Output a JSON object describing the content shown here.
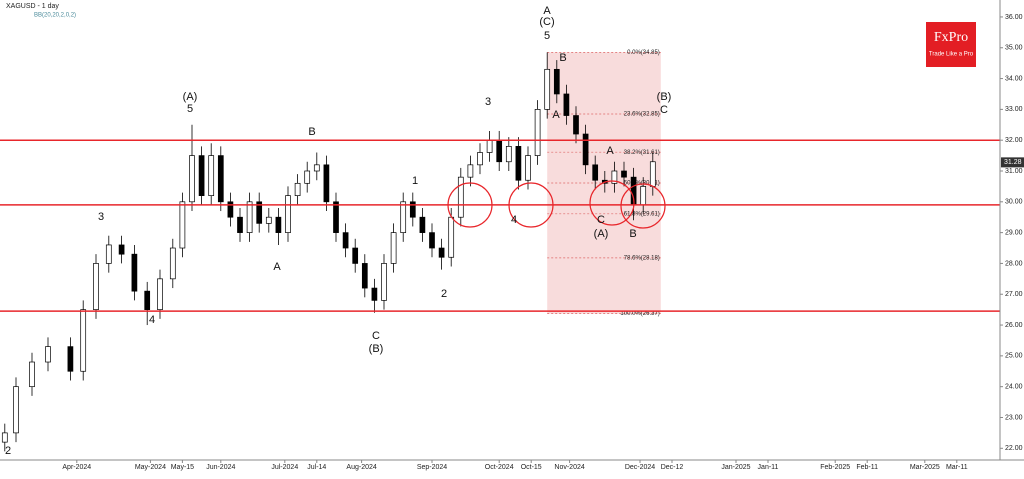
{
  "chart_data": {
    "type": "candlestick",
    "title": "XAGUSD - 1 day",
    "subtitle": "BB(20,20,2,0,2)",
    "logo": {
      "brand": "FxPro",
      "tagline": "Trade Like a Pro"
    },
    "x": [
      1.5,
      5,
      10,
      15,
      22,
      26,
      30,
      34,
      38,
      42,
      46,
      50,
      54,
      57,
      60,
      63,
      66,
      69,
      72,
      75,
      78,
      81,
      84,
      87,
      90,
      93,
      96,
      99,
      102,
      105,
      108,
      111,
      114,
      117,
      120,
      123,
      126,
      129,
      132,
      135,
      138,
      141,
      144,
      147,
      150,
      153,
      156,
      159,
      162,
      165,
      168,
      171,
      174,
      177,
      180,
      183,
      186,
      189,
      192,
      195,
      198,
      201,
      204
    ],
    "open": [
      22.2,
      22.5,
      24,
      24.8,
      25.3,
      24.5,
      26.5,
      28,
      28.6,
      28.3,
      27.1,
      26.5,
      27.5,
      28.5,
      30,
      31.5,
      30.2,
      31.5,
      30,
      29.5,
      29,
      30,
      29.3,
      29.5,
      29,
      30.2,
      30.6,
      31,
      31.2,
      30,
      29,
      28.5,
      28,
      27.2,
      26.8,
      28,
      29,
      30,
      29.5,
      29,
      28.5,
      28.2,
      29.5,
      30.8,
      31.2,
      31.6,
      32,
      31.3,
      31.8,
      30.7,
      31.5,
      33,
      34.3,
      33.5,
      32.8,
      32.2,
      31.2,
      30.7,
      30.6,
      31,
      30.8,
      29.9,
      30.5
    ],
    "high": [
      22.8,
      24.3,
      25.1,
      25.6,
      25.6,
      26.8,
      28.3,
      28.9,
      28.9,
      28.6,
      27.4,
      27.8,
      28.8,
      30.3,
      32.5,
      31.8,
      31.9,
      31.8,
      30.3,
      29.8,
      30.3,
      30.3,
      29.8,
      29.8,
      30.5,
      30.9,
      31.3,
      31.6,
      31.5,
      30.3,
      29.3,
      28.8,
      28.3,
      27.5,
      28.3,
      29.3,
      30.3,
      30.3,
      29.8,
      29.3,
      28.8,
      29.8,
      31.1,
      31.5,
      31.9,
      32.3,
      32.3,
      32.1,
      32.1,
      31.8,
      33.3,
      34.85,
      34.6,
      33.8,
      33.1,
      32.5,
      31.5,
      31,
      31.3,
      31.3,
      31.1,
      30.8,
      31.6
    ],
    "low": [
      21.9,
      22.2,
      23.7,
      24.5,
      24.2,
      24.2,
      26.2,
      27.7,
      28,
      26.8,
      26,
      26.2,
      27.2,
      28.2,
      29.7,
      29.9,
      29.9,
      29.7,
      29.2,
      28.7,
      28.7,
      29,
      29,
      28.6,
      28.7,
      29.9,
      30.3,
      30.7,
      29.7,
      28.7,
      28.2,
      27.7,
      26.9,
      26.4,
      26.5,
      27.7,
      28.7,
      29.2,
      28.7,
      28.2,
      27.8,
      27.9,
      29.2,
      30.5,
      30.9,
      31.3,
      31,
      31,
      30.4,
      30.4,
      31.2,
      32.7,
      33.2,
      32.5,
      31.9,
      30.9,
      30.4,
      30.3,
      30.3,
      30.5,
      29.4,
      29.6,
      30.2
    ],
    "close": [
      22.5,
      24,
      24.8,
      25.3,
      24.5,
      26.5,
      28,
      28.6,
      28.3,
      27.1,
      26.5,
      27.5,
      28.5,
      30,
      31.5,
      30.2,
      31.5,
      30,
      29.5,
      29,
      30,
      29.3,
      29.5,
      29,
      30.2,
      30.6,
      31,
      31.2,
      30,
      29,
      28.5,
      28,
      27.2,
      26.8,
      28,
      29,
      30,
      29.5,
      29,
      28.5,
      28.2,
      29.5,
      30.8,
      31.2,
      31.6,
      32,
      31.3,
      31.8,
      30.7,
      31.5,
      33,
      34.3,
      33.5,
      32.8,
      32.2,
      31.2,
      30.7,
      30.6,
      31,
      30.8,
      29.9,
      30.5,
      31.3
    ],
    "up_color": "#ffffff",
    "down_color": "#000000",
    "xlim": [
      0,
      312.5
    ],
    "xticks": [
      {
        "value": 24,
        "label": "Apr-2024"
      },
      {
        "value": 47,
        "label": "May-2024"
      },
      {
        "value": 57,
        "label": "May-15"
      },
      {
        "value": 69,
        "label": "Jun-2024"
      },
      {
        "value": 89,
        "label": "Jul-2024"
      },
      {
        "value": 99,
        "label": "Jul-14"
      },
      {
        "value": 113,
        "label": "Aug-2024"
      },
      {
        "value": 135,
        "label": "Sep-2024"
      },
      {
        "value": 156,
        "label": "Oct-2024"
      },
      {
        "value": 166,
        "label": "Oct-15"
      },
      {
        "value": 178,
        "label": "Nov-2024"
      },
      {
        "value": 200,
        "label": "Dec-2024"
      },
      {
        "value": 210,
        "label": "Dec-12"
      },
      {
        "value": 230,
        "label": "Jan-2025"
      },
      {
        "value": 240,
        "label": "Jan-11"
      },
      {
        "value": 261,
        "label": "Feb-2025"
      },
      {
        "value": 271,
        "label": "Feb-11"
      },
      {
        "value": 289,
        "label": "Mar-2025"
      },
      {
        "value": 299,
        "label": "Mar-11"
      }
    ],
    "ylim": [
      21.62,
      36.55
    ],
    "yticks": [
      {
        "value": 22,
        "label": "22.00"
      },
      {
        "value": 23,
        "label": "23.00"
      },
      {
        "value": 24,
        "label": "24.00"
      },
      {
        "value": 25,
        "label": "25.00"
      },
      {
        "value": 26,
        "label": "26.00"
      },
      {
        "value": 27,
        "label": "27.00"
      },
      {
        "value": 28,
        "label": "28.00"
      },
      {
        "value": 29,
        "label": "29.00"
      },
      {
        "value": 30,
        "label": "30.00"
      },
      {
        "value": 31,
        "label": "31.00"
      },
      {
        "value": 32,
        "label": "32.00"
      },
      {
        "value": 33,
        "label": "33.00"
      },
      {
        "value": 34,
        "label": "34.00"
      },
      {
        "value": 35,
        "label": "35.00"
      },
      {
        "value": 36,
        "label": "36.00"
      }
    ],
    "last_price": 31.28,
    "levels": [
      32.0,
      29.9,
      26.45
    ],
    "level_color": "#e8262b",
    "fib_levels": [
      {
        "value": 34.85,
        "label": "0.0%(34.85)"
      },
      {
        "value": 32.85,
        "label": "23.6%(32.85)"
      },
      {
        "value": 31.61,
        "label": "38.2%(31.61)"
      },
      {
        "value": 30.61,
        "label": "50.0%(30.61)"
      },
      {
        "value": 29.61,
        "label": "61.8%(29.61)"
      },
      {
        "value": 28.18,
        "label": "78.6%(28.18)"
      },
      {
        "value": 26.37,
        "label": "100.0%(26.37)"
      }
    ],
    "annotations": [
      "(A)",
      "5",
      "(B)",
      "C",
      "(C)",
      "5",
      "A",
      "B",
      "A",
      "(B)",
      "C",
      "A",
      "(A)",
      "C",
      "B",
      "3",
      "4",
      "2",
      "B",
      "A",
      "1",
      "2",
      "3",
      "4"
    ]
  }
}
